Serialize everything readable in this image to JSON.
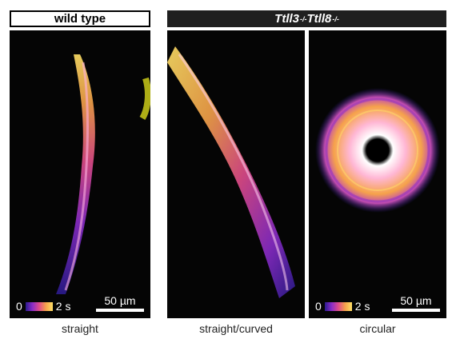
{
  "headers": {
    "wild_type": "wild type",
    "knockout_part1": "Ttll3",
    "knockout_sup1": "-/-",
    "knockout_part2": "Ttll8",
    "knockout_sup2": "-/-"
  },
  "panels": [
    {
      "caption": "straight",
      "legend_start": "0",
      "legend_end": "2 s",
      "scale_label": "50 µm"
    },
    {
      "caption": "straight/curved"
    },
    {
      "caption": "circular",
      "legend_start": "0",
      "legend_end": "2 s",
      "scale_label": "50 µm"
    }
  ],
  "colors": {
    "time_start": "#2b1b8f",
    "time_mid": "#e04c8a",
    "time_end": "#ffe066",
    "background": "#050505"
  }
}
